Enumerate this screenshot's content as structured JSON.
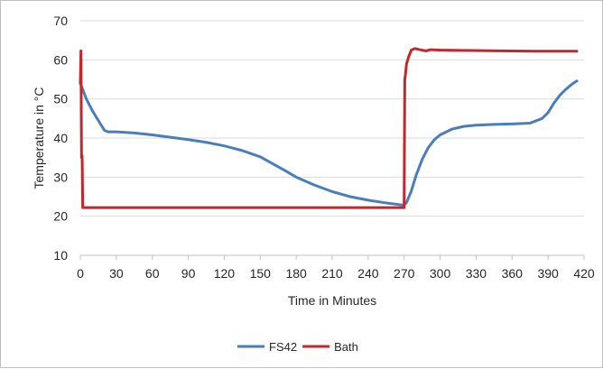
{
  "chart_data": {
    "type": "line",
    "xlabel": "Time in Minutes",
    "ylabel": "Temperature in °C",
    "xlim": [
      0,
      420
    ],
    "ylim": [
      10,
      70
    ],
    "xticks": [
      0,
      30,
      60,
      90,
      120,
      150,
      180,
      210,
      240,
      270,
      300,
      330,
      360,
      390,
      420
    ],
    "yticks": [
      10,
      20,
      30,
      40,
      50,
      60,
      70
    ],
    "grid": "horizontal",
    "legend_position": "bottom",
    "series": [
      {
        "name": "FS42",
        "color": "#4a7ebb",
        "points": [
          [
            0,
            54
          ],
          [
            5,
            50
          ],
          [
            10,
            47
          ],
          [
            15,
            44.5
          ],
          [
            20,
            42
          ],
          [
            23,
            41.6
          ],
          [
            30,
            41.6
          ],
          [
            45,
            41.3
          ],
          [
            60,
            40.8
          ],
          [
            75,
            40.2
          ],
          [
            90,
            39.6
          ],
          [
            105,
            38.9
          ],
          [
            120,
            38
          ],
          [
            135,
            36.8
          ],
          [
            150,
            35.2
          ],
          [
            160,
            33.5
          ],
          [
            170,
            31.8
          ],
          [
            180,
            30
          ],
          [
            195,
            28
          ],
          [
            210,
            26.3
          ],
          [
            225,
            25
          ],
          [
            240,
            24.1
          ],
          [
            255,
            23.4
          ],
          [
            270,
            22.8
          ],
          [
            272,
            23.5
          ],
          [
            276,
            26.5
          ],
          [
            280,
            30.5
          ],
          [
            285,
            34.5
          ],
          [
            290,
            37.5
          ],
          [
            295,
            39.5
          ],
          [
            300,
            40.8
          ],
          [
            310,
            42.3
          ],
          [
            320,
            43
          ],
          [
            330,
            43.3
          ],
          [
            345,
            43.5
          ],
          [
            360,
            43.6
          ],
          [
            375,
            43.8
          ],
          [
            385,
            45
          ],
          [
            390,
            46.5
          ],
          [
            395,
            49
          ],
          [
            400,
            51
          ],
          [
            405,
            52.5
          ],
          [
            410,
            53.8
          ],
          [
            414,
            54.6
          ]
        ]
      },
      {
        "name": "Bath",
        "color": "#c0282e",
        "points": [
          [
            0,
            54
          ],
          [
            0.5,
            62.3
          ],
          [
            1,
            35
          ],
          [
            1.5,
            35.5
          ],
          [
            2,
            22.2
          ],
          [
            10,
            22.2
          ],
          [
            60,
            22.2
          ],
          [
            120,
            22.2
          ],
          [
            180,
            22.2
          ],
          [
            240,
            22.2
          ],
          [
            269,
            22.2
          ],
          [
            270,
            22.2
          ],
          [
            270.5,
            55
          ],
          [
            271,
            56
          ],
          [
            272,
            59
          ],
          [
            274,
            61
          ],
          [
            276,
            62.5
          ],
          [
            279,
            62.9
          ],
          [
            283,
            62.6
          ],
          [
            288,
            62.3
          ],
          [
            292,
            62.6
          ],
          [
            300,
            62.5
          ],
          [
            320,
            62.4
          ],
          [
            350,
            62.3
          ],
          [
            380,
            62.2
          ],
          [
            414,
            62.2
          ]
        ]
      }
    ]
  }
}
